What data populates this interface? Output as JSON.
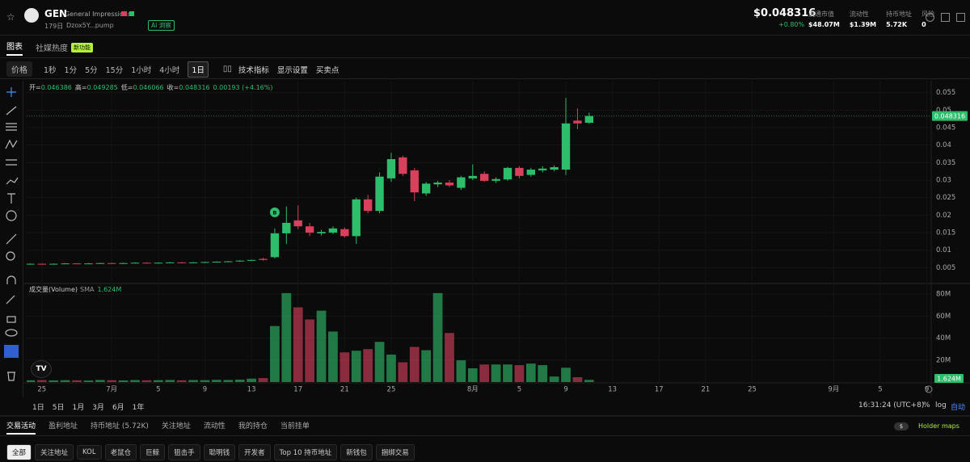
{
  "header": {
    "symbol": "GEN",
    "name": "General Impressions",
    "age": "179日",
    "address": "Dzox5Y...pump",
    "ai_badge": "AI 洞察",
    "price": "$0.048316",
    "price_change": "+0.80%",
    "stats": [
      {
        "label": "流通市值",
        "value": "$48.07M"
      },
      {
        "label": "流动性",
        "value": "$1.39M"
      },
      {
        "label": "持币地址",
        "value": "5.72K"
      },
      {
        "label": "风险",
        "value": "0"
      }
    ]
  },
  "tabs": {
    "items": [
      "图表",
      "社媒热度"
    ],
    "new_badge": "新功能"
  },
  "toolbar": {
    "price_mode": "价格",
    "intervals": [
      "1秒",
      "1分",
      "5分",
      "15分",
      "1小时",
      "4小时",
      "1日"
    ],
    "active_interval": "1日",
    "buttons": [
      "技术指标",
      "显示设置",
      "买卖点"
    ]
  },
  "chart_data": {
    "type": "candlestick",
    "ohlc_labels": [
      "开=",
      "高=",
      "低=",
      "收="
    ],
    "change": "0.00193 (+4.16%)",
    "x": [
      "06-24",
      "06-25",
      "06-26",
      "06-27",
      "06-28",
      "06-29",
      "06-30",
      "07-01",
      "07-02",
      "07-03",
      "07-04",
      "07-05",
      "07-06",
      "07-07",
      "07-08",
      "07-09",
      "07-10",
      "07-11",
      "07-12",
      "07-13",
      "07-14",
      "07-15",
      "07-16",
      "07-17",
      "07-18",
      "07-19",
      "07-20",
      "07-21",
      "07-22",
      "07-23",
      "07-24",
      "07-25",
      "07-26",
      "07-27",
      "07-28",
      "07-29",
      "07-30",
      "07-31",
      "08-01",
      "08-02",
      "08-03",
      "08-04",
      "08-05",
      "08-06",
      "08-07",
      "08-08",
      "08-09",
      "08-10",
      "08-11"
    ],
    "open": [
      0.006,
      0.0061,
      0.006,
      0.0061,
      0.0062,
      0.0061,
      0.0062,
      0.0063,
      0.0062,
      0.0063,
      0.0064,
      0.0063,
      0.0064,
      0.0065,
      0.0064,
      0.0065,
      0.0066,
      0.0067,
      0.0068,
      0.007,
      0.0075,
      0.008,
      0.0148,
      0.0185,
      0.0168,
      0.0148,
      0.015,
      0.016,
      0.014,
      0.0245,
      0.0212,
      0.0305,
      0.0365,
      0.0328,
      0.0262,
      0.0288,
      0.0293,
      0.0278,
      0.0305,
      0.0318,
      0.0298,
      0.0302,
      0.0335,
      0.0315,
      0.0328,
      0.033,
      0.033,
      0.047,
      0.046386
    ],
    "high": [
      0.0062,
      0.0062,
      0.0062,
      0.0063,
      0.0063,
      0.0063,
      0.0064,
      0.0064,
      0.0064,
      0.0065,
      0.0065,
      0.0065,
      0.0066,
      0.0066,
      0.0066,
      0.0067,
      0.0068,
      0.0069,
      0.0071,
      0.0073,
      0.0078,
      0.0162,
      0.0225,
      0.0228,
      0.0178,
      0.0158,
      0.0168,
      0.0165,
      0.025,
      0.0258,
      0.0322,
      0.0378,
      0.037,
      0.0335,
      0.0295,
      0.0298,
      0.03,
      0.0312,
      0.0345,
      0.0325,
      0.0308,
      0.0338,
      0.034,
      0.0335,
      0.034,
      0.0342,
      0.0535,
      0.0505,
      0.049285
    ],
    "low": [
      0.0059,
      0.0059,
      0.0059,
      0.006,
      0.006,
      0.006,
      0.0061,
      0.0061,
      0.0061,
      0.0062,
      0.0062,
      0.0062,
      0.0063,
      0.0063,
      0.0063,
      0.0064,
      0.0065,
      0.0066,
      0.0067,
      0.0069,
      0.007,
      0.0076,
      0.0118,
      0.016,
      0.014,
      0.0142,
      0.0146,
      0.0136,
      0.0118,
      0.0205,
      0.0205,
      0.0295,
      0.0312,
      0.024,
      0.0255,
      0.028,
      0.028,
      0.0272,
      0.03,
      0.0295,
      0.0292,
      0.0298,
      0.0305,
      0.031,
      0.0322,
      0.0325,
      0.0315,
      0.0445,
      0.046066
    ],
    "close": [
      0.0061,
      0.006,
      0.0061,
      0.0062,
      0.0061,
      0.0062,
      0.0063,
      0.0062,
      0.0063,
      0.0064,
      0.0063,
      0.0064,
      0.0065,
      0.0064,
      0.0065,
      0.0066,
      0.0067,
      0.0068,
      0.007,
      0.0072,
      0.0072,
      0.0148,
      0.0178,
      0.0168,
      0.015,
      0.0152,
      0.0162,
      0.014,
      0.0245,
      0.0212,
      0.031,
      0.036,
      0.0318,
      0.0265,
      0.029,
      0.0293,
      0.0285,
      0.0308,
      0.0312,
      0.0298,
      0.0303,
      0.0335,
      0.0312,
      0.033,
      0.0333,
      0.0337,
      0.0462,
      0.0462,
      0.048316
    ],
    "volume": [
      1600000,
      1800000,
      1500000,
      1700000,
      1600000,
      1400000,
      1900000,
      1700000,
      1500000,
      1800000,
      1600000,
      1700000,
      1900000,
      1600000,
      1800000,
      1700000,
      2000000,
      1900000,
      2200000,
      3100000,
      3600000,
      51000000,
      81000000,
      68000000,
      57000000,
      65000000,
      46000000,
      27000000,
      28500000,
      30000000,
      36600000,
      25000000,
      18000000,
      32000000,
      29000000,
      81000000,
      44700000,
      19800000,
      12500000,
      16000000,
      16000000,
      16000000,
      15400000,
      16800000,
      15400000,
      5000000,
      13000000,
      4400000,
      2000000
    ],
    "xlim": [
      "06-23",
      "09-10"
    ],
    "xticks": [
      {
        "value": "06-25",
        "label": "25"
      },
      {
        "value": "07-01",
        "label": "7月"
      },
      {
        "value": "07-05",
        "label": "5"
      },
      {
        "value": "07-09",
        "label": "9"
      },
      {
        "value": "07-13",
        "label": "13"
      },
      {
        "value": "07-17",
        "label": "17"
      },
      {
        "value": "07-21",
        "label": "21"
      },
      {
        "value": "07-25",
        "label": "25"
      },
      {
        "value": "08-01",
        "label": "8月"
      },
      {
        "value": "08-05",
        "label": "5"
      },
      {
        "value": "08-09",
        "label": "9"
      },
      {
        "value": "08-13",
        "label": "13"
      },
      {
        "value": "08-17",
        "label": "17"
      },
      {
        "value": "08-21",
        "label": "21"
      },
      {
        "value": "08-25",
        "label": "25"
      },
      {
        "value": "09-01",
        "label": "9月"
      },
      {
        "value": "09-05",
        "label": "5"
      },
      {
        "value": "09-09",
        "label": "9"
      }
    ],
    "ylim": [
      0.0007,
      0.057
    ],
    "yticks": [
      0.005,
      0.01,
      0.015,
      0.02,
      0.025,
      0.03,
      0.035,
      0.04,
      0.045,
      0.05,
      0.055
    ],
    "volume_title": "成交量(Volume)",
    "volume_sma_name": "SMA",
    "volume_sma_label": "1.624M",
    "volume_ylim": [
      0,
      89000000
    ],
    "volume_yticks": [
      {
        "value": 20000000,
        "label": "20M"
      },
      {
        "value": 40000000,
        "label": "40M"
      },
      {
        "value": 60000000,
        "label": "60M"
      },
      {
        "value": 80000000,
        "label": "80M"
      }
    ],
    "markers": [
      {
        "x": "07-15",
        "label": "B"
      }
    ],
    "up_color": "#2ebd6b",
    "down_color": "#d8405c",
    "grid": true
  },
  "range_bar": {
    "ranges": [
      "1日",
      "5日",
      "1月",
      "3月",
      "6月",
      "1年"
    ],
    "time": "16:31:24 (UTC+8)",
    "options": [
      "%",
      "log",
      "自动"
    ]
  },
  "bottom_tabs": {
    "items": [
      "交易活动",
      "盈利地址",
      "持币地址 (5.72K)",
      "关注地址",
      "流动性",
      "我的持仓",
      "当前挂单"
    ],
    "toggle": "$",
    "holder_maps": "Holder maps"
  },
  "filters": [
    "全部",
    "关注地址",
    "KOL",
    "老鼠仓",
    "巨鲸",
    "狙击手",
    "聪明钱",
    "开发者",
    "Top 10 持币地址",
    "新钱包",
    "捆绑交易"
  ]
}
